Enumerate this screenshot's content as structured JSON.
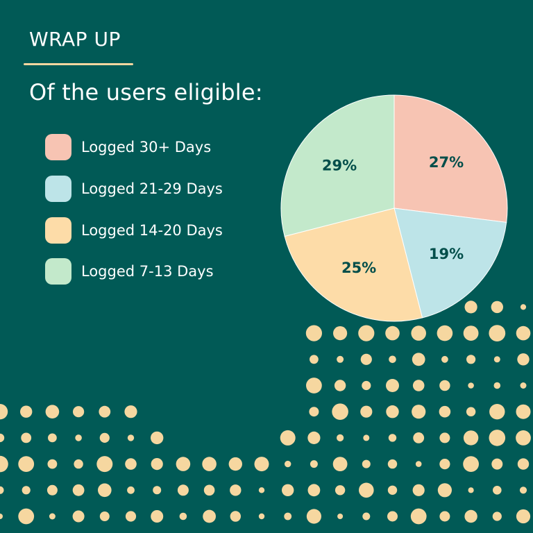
{
  "header": {
    "section_label": "WRAP UP",
    "headline": "Of the users eligible:"
  },
  "colors": {
    "background": "#015a56",
    "accent": "#f6d7a0",
    "label_text": "#014e4a"
  },
  "chart_data": {
    "type": "pie",
    "title": "",
    "legend_position": "left",
    "slices": [
      {
        "label": "Logged 30+ Days",
        "value": 27,
        "display": "27%",
        "color": "#f7c4b3"
      },
      {
        "label": "Logged 21-29 Days",
        "value": 19,
        "display": "19%",
        "color": "#bde4e8"
      },
      {
        "label": "Logged 14-20 Days",
        "value": 25,
        "display": "25%",
        "color": "#fddca8"
      },
      {
        "label": "Logged 7-13 Days",
        "value": 29,
        "display": "29%",
        "color": "#c3e9cb"
      }
    ]
  }
}
